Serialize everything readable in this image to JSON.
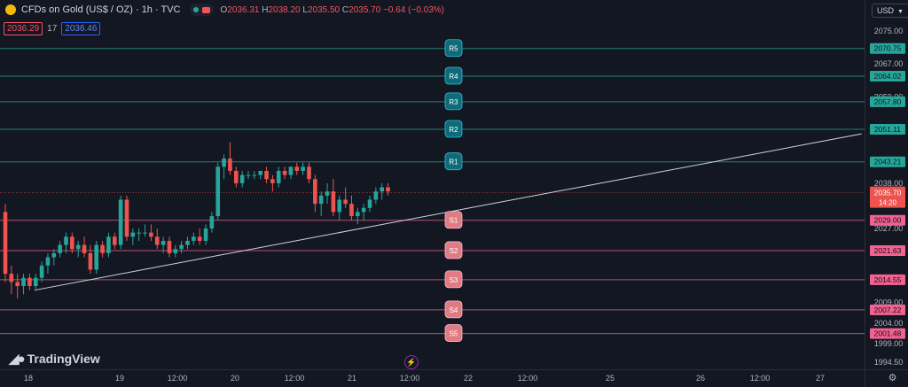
{
  "header": {
    "symbol_title": "CFDs on Gold (US$ / OZ) · 1h · TVC",
    "ohlc": {
      "o_label": "O",
      "o_value": "2036.31",
      "h_label": "H",
      "h_value": "2038.20",
      "l_label": "L",
      "l_value": "2035.50",
      "c_label": "C",
      "c_value": "2035.70",
      "change": "−0.64 (−0.03%)"
    },
    "bid": "2036.29",
    "spread": "17",
    "ask": "2036.46"
  },
  "currency": "USD",
  "brand": "TradingView",
  "colors": {
    "background": "#131722",
    "resistance": "#26a69a",
    "support": "#f06292",
    "bull": "#26a69a",
    "bear": "#ef5350",
    "trendline": "#d1d4dc",
    "resistance_badge": "#0f6b7a",
    "support_badge": "#e07b83"
  },
  "price_axis": {
    "ticks": [
      "2075.00",
      "2067.00",
      "2059.00",
      "2038.00",
      "2027.00",
      "2009.00",
      "2004.00",
      "1999.00",
      "1994.50"
    ],
    "current_price": "2035.70",
    "countdown": "14:20"
  },
  "levels": [
    {
      "badge": "R5",
      "value": "2070.75",
      "type": "resistance"
    },
    {
      "badge": "R4",
      "value": "2064.02",
      "type": "resistance"
    },
    {
      "badge": "R3",
      "value": "2057.80",
      "type": "resistance"
    },
    {
      "badge": "R2",
      "value": "2051.11",
      "type": "resistance"
    },
    {
      "badge": "R1",
      "value": "2043.21",
      "type": "resistance"
    },
    {
      "badge": "S1",
      "value": "2029.00",
      "type": "support"
    },
    {
      "badge": "S2",
      "value": "2021.63",
      "type": "support"
    },
    {
      "badge": "S3",
      "value": "2014.55",
      "type": "support"
    },
    {
      "badge": "S4",
      "value": "2007.22",
      "type": "support"
    },
    {
      "badge": "S5",
      "value": "2001.48",
      "type": "support"
    }
  ],
  "time_axis": {
    "ticks": [
      "18",
      "19",
      "12:00",
      "20",
      "12:00",
      "21",
      "12:00",
      "22",
      "12:00",
      "25",
      "26",
      "12:00",
      "27"
    ]
  },
  "chart_data": {
    "type": "candlestick",
    "series": [
      {
        "o": 2031,
        "h": 2033,
        "l": 2014,
        "c": 2016
      },
      {
        "o": 2016,
        "h": 2018,
        "l": 2011,
        "c": 2014
      },
      {
        "o": 2014,
        "h": 2016,
        "l": 2010,
        "c": 2013
      },
      {
        "o": 2013,
        "h": 2016,
        "l": 2011,
        "c": 2015
      },
      {
        "o": 2015,
        "h": 2016,
        "l": 2012,
        "c": 2013
      },
      {
        "o": 2013,
        "h": 2016,
        "l": 2012,
        "c": 2015
      },
      {
        "o": 2015,
        "h": 2019,
        "l": 2014,
        "c": 2018
      },
      {
        "o": 2018,
        "h": 2021,
        "l": 2016,
        "c": 2020
      },
      {
        "o": 2020,
        "h": 2022,
        "l": 2018,
        "c": 2021
      },
      {
        "o": 2021,
        "h": 2024,
        "l": 2020,
        "c": 2023
      },
      {
        "o": 2023,
        "h": 2026,
        "l": 2021,
        "c": 2025
      },
      {
        "o": 2025,
        "h": 2026,
        "l": 2021,
        "c": 2022
      },
      {
        "o": 2022,
        "h": 2024,
        "l": 2020,
        "c": 2023
      },
      {
        "o": 2023,
        "h": 2025,
        "l": 2020,
        "c": 2021
      },
      {
        "o": 2021,
        "h": 2023,
        "l": 2016,
        "c": 2017
      },
      {
        "o": 2017,
        "h": 2024,
        "l": 2016,
        "c": 2023
      },
      {
        "o": 2023,
        "h": 2024,
        "l": 2020,
        "c": 2021
      },
      {
        "o": 2021,
        "h": 2026,
        "l": 2020,
        "c": 2025
      },
      {
        "o": 2025,
        "h": 2026,
        "l": 2022,
        "c": 2023
      },
      {
        "o": 2023,
        "h": 2035,
        "l": 2022,
        "c": 2034
      },
      {
        "o": 2034,
        "h": 2035,
        "l": 2024,
        "c": 2025
      },
      {
        "o": 2025,
        "h": 2027,
        "l": 2023,
        "c": 2026
      },
      {
        "o": 2026,
        "h": 2027,
        "l": 2024,
        "c": 2026
      },
      {
        "o": 2026,
        "h": 2028,
        "l": 2025,
        "c": 2026
      },
      {
        "o": 2026,
        "h": 2028,
        "l": 2024,
        "c": 2025
      },
      {
        "o": 2025,
        "h": 2027,
        "l": 2022,
        "c": 2023
      },
      {
        "o": 2023,
        "h": 2025,
        "l": 2021,
        "c": 2024
      },
      {
        "o": 2024,
        "h": 2025,
        "l": 2020,
        "c": 2021
      },
      {
        "o": 2021,
        "h": 2023,
        "l": 2020,
        "c": 2022
      },
      {
        "o": 2022,
        "h": 2024,
        "l": 2021,
        "c": 2023
      },
      {
        "o": 2023,
        "h": 2025,
        "l": 2022,
        "c": 2024
      },
      {
        "o": 2024,
        "h": 2026,
        "l": 2023,
        "c": 2025
      },
      {
        "o": 2025,
        "h": 2027,
        "l": 2023,
        "c": 2024
      },
      {
        "o": 2024,
        "h": 2028,
        "l": 2023,
        "c": 2027
      },
      {
        "o": 2027,
        "h": 2031,
        "l": 2026,
        "c": 2030
      },
      {
        "o": 2030,
        "h": 2043,
        "l": 2029,
        "c": 2042
      },
      {
        "o": 2042,
        "h": 2045,
        "l": 2039,
        "c": 2044
      },
      {
        "o": 2044,
        "h": 2048,
        "l": 2040,
        "c": 2041
      },
      {
        "o": 2041,
        "h": 2042,
        "l": 2037,
        "c": 2038
      },
      {
        "o": 2038,
        "h": 2041,
        "l": 2037,
        "c": 2040
      },
      {
        "o": 2040,
        "h": 2041,
        "l": 2039,
        "c": 2040
      },
      {
        "o": 2040,
        "h": 2041,
        "l": 2039,
        "c": 2040
      },
      {
        "o": 2040,
        "h": 2041,
        "l": 2039,
        "c": 2041
      },
      {
        "o": 2041,
        "h": 2042,
        "l": 2038,
        "c": 2039
      },
      {
        "o": 2039,
        "h": 2040,
        "l": 2036,
        "c": 2038
      },
      {
        "o": 2038,
        "h": 2042,
        "l": 2037,
        "c": 2041
      },
      {
        "o": 2041,
        "h": 2042,
        "l": 2039,
        "c": 2040
      },
      {
        "o": 2040,
        "h": 2042,
        "l": 2039,
        "c": 2042
      },
      {
        "o": 2042,
        "h": 2043,
        "l": 2040,
        "c": 2041
      },
      {
        "o": 2041,
        "h": 2043,
        "l": 2040,
        "c": 2042
      },
      {
        "o": 2042,
        "h": 2043,
        "l": 2038,
        "c": 2039
      },
      {
        "o": 2039,
        "h": 2040,
        "l": 2031,
        "c": 2033
      },
      {
        "o": 2033,
        "h": 2036,
        "l": 2030,
        "c": 2035
      },
      {
        "o": 2035,
        "h": 2038,
        "l": 2033,
        "c": 2036
      },
      {
        "o": 2036,
        "h": 2039,
        "l": 2030,
        "c": 2031
      },
      {
        "o": 2031,
        "h": 2035,
        "l": 2029,
        "c": 2034
      },
      {
        "o": 2034,
        "h": 2037,
        "l": 2032,
        "c": 2033
      },
      {
        "o": 2033,
        "h": 2035,
        "l": 2029,
        "c": 2030
      },
      {
        "o": 2030,
        "h": 2032,
        "l": 2028,
        "c": 2031
      },
      {
        "o": 2031,
        "h": 2033,
        "l": 2029,
        "c": 2032
      },
      {
        "o": 2032,
        "h": 2035,
        "l": 2031,
        "c": 2034
      },
      {
        "o": 2034,
        "h": 2037,
        "l": 2033,
        "c": 2036
      },
      {
        "o": 2036,
        "h": 2038,
        "l": 2034,
        "c": 2037
      },
      {
        "o": 2037,
        "h": 2038,
        "l": 2035,
        "c": 2036
      }
    ],
    "trendline": [
      {
        "bar": 1,
        "price": 2012
      },
      {
        "bar": 109,
        "price": 2050
      }
    ],
    "ylim": [
      1994.5,
      2075
    ]
  }
}
